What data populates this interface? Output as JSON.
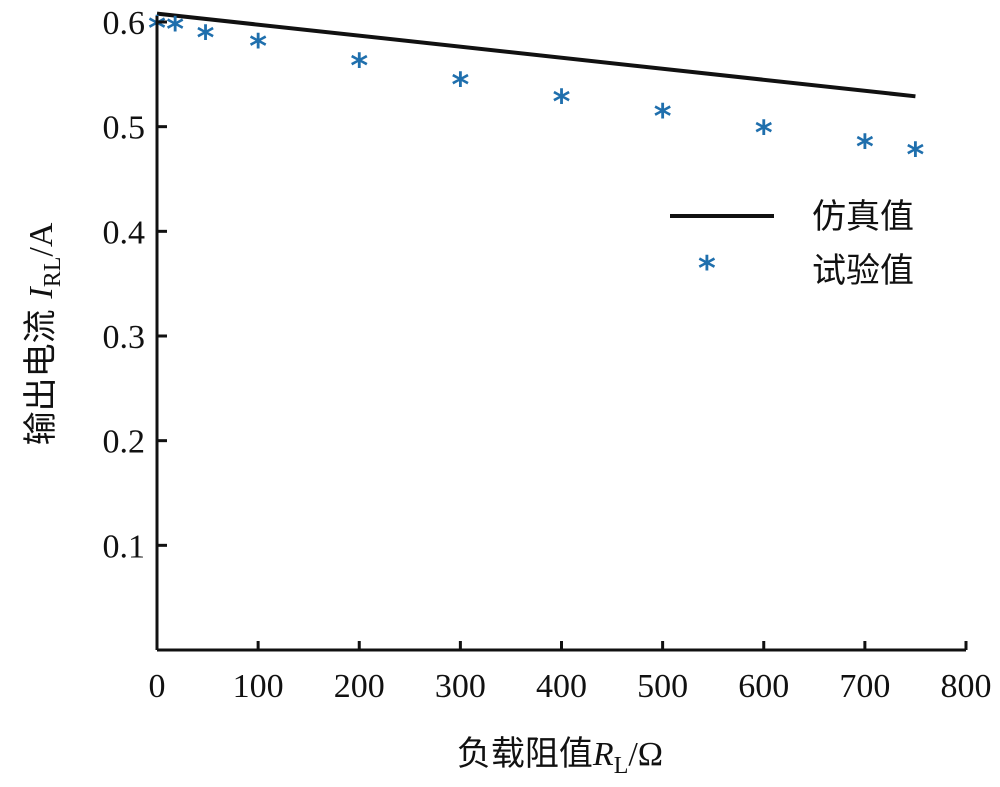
{
  "chart_data": {
    "type": "line+scatter",
    "xlim": [
      0,
      800
    ],
    "ylim": [
      0,
      0.6
    ],
    "x_ticks": [
      "0",
      "100",
      "200",
      "300",
      "400",
      "500",
      "600",
      "700",
      "800"
    ],
    "y_ticks": [
      "0.1",
      "0.2",
      "0.3",
      "0.4",
      "0.5",
      "0.6"
    ],
    "y_tick_values": [
      0.1,
      0.2,
      0.3,
      0.4,
      0.5,
      0.6
    ],
    "x_tick_values": [
      0,
      100,
      200,
      300,
      400,
      500,
      600,
      700,
      800
    ],
    "xlabel": {
      "prefix": "负载阻值",
      "var": "R",
      "sub": "L",
      "suffix": "/Ω"
    },
    "ylabel": {
      "prefix": "输出电流 ",
      "var": "I",
      "sub": "RL",
      "suffix": "/A"
    },
    "legend_position": "right-middle",
    "series": [
      {
        "name": "仿真值",
        "kind": "line",
        "color": "#111111",
        "x": [
          0,
          750
        ],
        "y": [
          0.608,
          0.529
        ]
      },
      {
        "name": "试验值",
        "kind": "scatter",
        "marker": "asterisk",
        "color": "#1f6fad",
        "x": [
          0,
          18,
          48,
          100,
          200,
          300,
          400,
          500,
          600,
          700,
          750
        ],
        "y": [
          0.599,
          0.598,
          0.59,
          0.582,
          0.563,
          0.545,
          0.529,
          0.515,
          0.499,
          0.486,
          0.478
        ]
      }
    ]
  }
}
